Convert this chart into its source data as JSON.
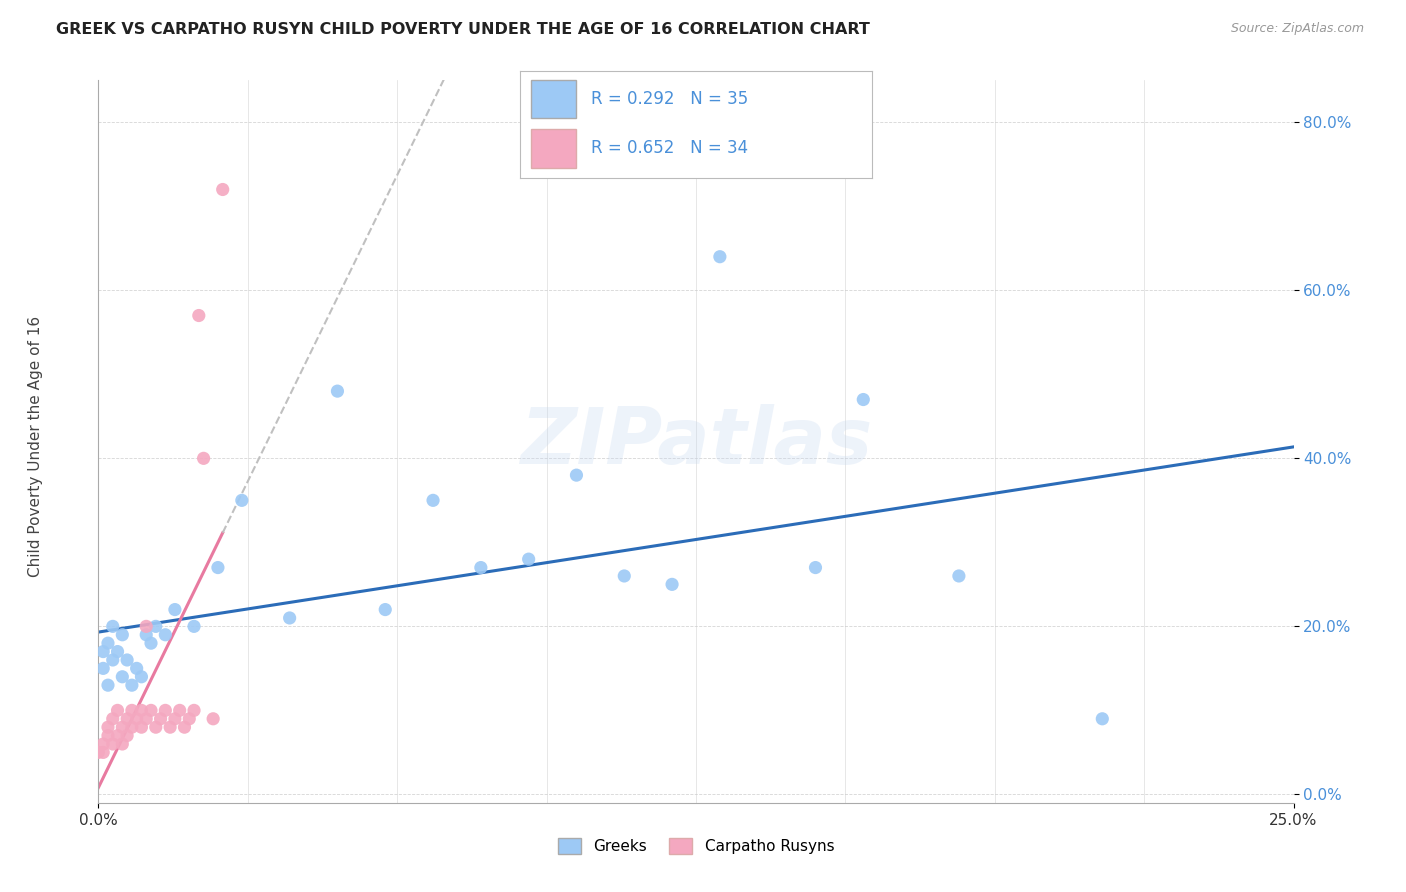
{
  "title": "GREEK VS CARPATHO RUSYN CHILD POVERTY UNDER THE AGE OF 16 CORRELATION CHART",
  "source": "Source: ZipAtlas.com",
  "ylabel": "Child Poverty Under the Age of 16",
  "legend_labels": [
    "Greeks",
    "Carpatho Rusyns"
  ],
  "r_greek": 0.292,
  "n_greek": 35,
  "r_rusyn": 0.652,
  "n_rusyn": 34,
  "xlim": [
    0.0,
    0.25
  ],
  "ylim": [
    -0.01,
    0.85
  ],
  "yticks": [
    0.0,
    0.2,
    0.4,
    0.6,
    0.8
  ],
  "greek_color": "#9dc9f5",
  "rusyn_color": "#f4a8c0",
  "greek_line_color": "#2b6cb8",
  "rusyn_line_color": "#e87aa0",
  "rusyn_dash_color": "#c0c0c0",
  "watermark": "ZIPatlas",
  "greek_x": [
    0.001,
    0.001,
    0.002,
    0.002,
    0.003,
    0.003,
    0.004,
    0.005,
    0.005,
    0.006,
    0.007,
    0.008,
    0.009,
    0.01,
    0.011,
    0.012,
    0.014,
    0.016,
    0.02,
    0.025,
    0.03,
    0.04,
    0.05,
    0.06,
    0.07,
    0.08,
    0.09,
    0.1,
    0.11,
    0.12,
    0.13,
    0.15,
    0.16,
    0.18,
    0.21
  ],
  "greek_y": [
    0.15,
    0.17,
    0.13,
    0.18,
    0.16,
    0.2,
    0.17,
    0.14,
    0.19,
    0.16,
    0.13,
    0.15,
    0.14,
    0.19,
    0.18,
    0.2,
    0.19,
    0.22,
    0.2,
    0.27,
    0.35,
    0.21,
    0.48,
    0.22,
    0.35,
    0.27,
    0.28,
    0.38,
    0.26,
    0.25,
    0.64,
    0.27,
    0.47,
    0.26,
    0.09
  ],
  "rusyn_x": [
    0.0,
    0.001,
    0.001,
    0.002,
    0.002,
    0.003,
    0.003,
    0.004,
    0.004,
    0.005,
    0.005,
    0.006,
    0.006,
    0.007,
    0.007,
    0.008,
    0.009,
    0.009,
    0.01,
    0.01,
    0.011,
    0.012,
    0.013,
    0.014,
    0.015,
    0.016,
    0.017,
    0.018,
    0.019,
    0.02,
    0.021,
    0.022,
    0.024,
    0.026
  ],
  "rusyn_y": [
    0.05,
    0.05,
    0.06,
    0.07,
    0.08,
    0.06,
    0.09,
    0.07,
    0.1,
    0.08,
    0.06,
    0.07,
    0.09,
    0.08,
    0.1,
    0.09,
    0.08,
    0.1,
    0.09,
    0.2,
    0.1,
    0.08,
    0.09,
    0.1,
    0.08,
    0.09,
    0.1,
    0.08,
    0.09,
    0.1,
    0.57,
    0.4,
    0.09,
    0.72
  ]
}
